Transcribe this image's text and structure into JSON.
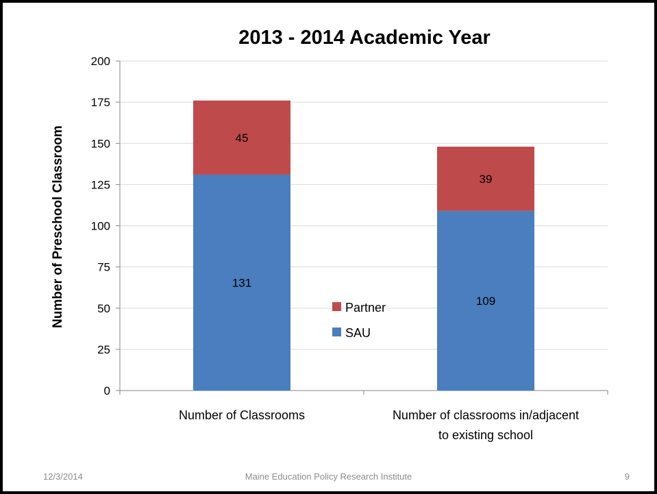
{
  "colors": {
    "sau": "#4a7ebf",
    "partner": "#bf4a4c",
    "grid": "#d9d9d9",
    "axis": "#868686",
    "text": "#000000",
    "footer": "#8c8c8c"
  },
  "footer": {
    "date": "12/3/2014",
    "organization": "Maine Education Policy Research Institute",
    "page": "9"
  },
  "chart_data": {
    "type": "bar",
    "stacked": true,
    "title": "2013 - 2014 Academic Year",
    "ylabel": "Number of Preschool Classroom",
    "xlabel": "",
    "categories": [
      [
        "Number of Classrooms"
      ],
      [
        "Number of classrooms in/adjacent",
        "to existing school"
      ]
    ],
    "series": [
      {
        "name": "SAU",
        "values": [
          131,
          109
        ],
        "color": "#4a7ebf"
      },
      {
        "name": "Partner",
        "values": [
          45,
          39
        ],
        "color": "#bf4a4c"
      }
    ],
    "ylim": [
      0,
      200
    ],
    "yticks": [
      0,
      25,
      50,
      75,
      100,
      125,
      150,
      175,
      200
    ],
    "grid": true,
    "legend": {
      "placement": "center",
      "entries": [
        "Partner",
        "SAU"
      ]
    }
  }
}
